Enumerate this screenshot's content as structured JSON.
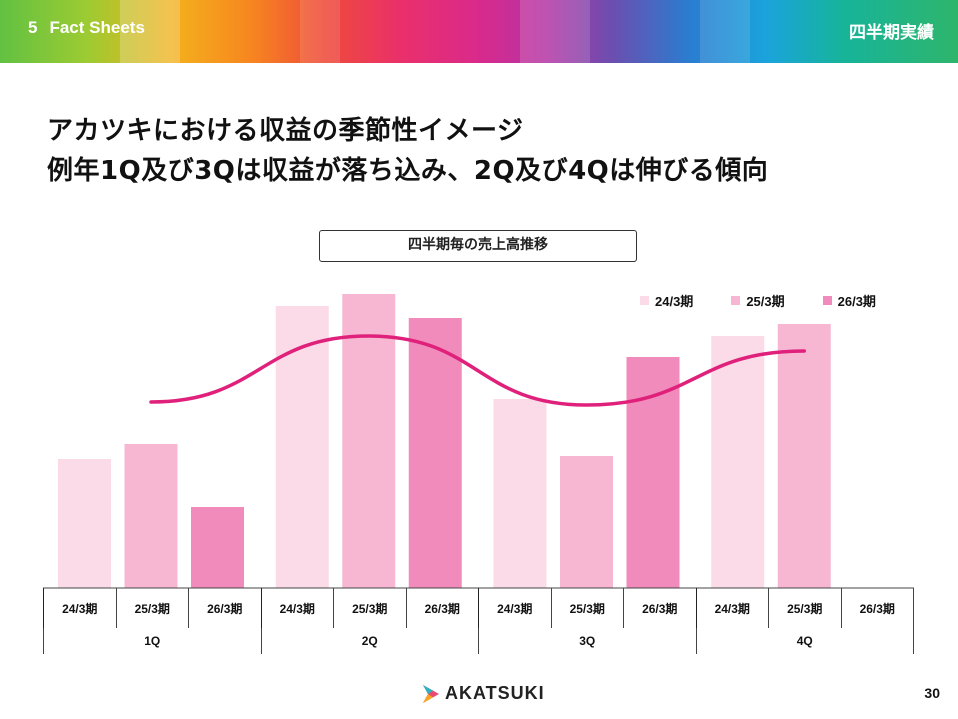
{
  "header": {
    "section_number": "5",
    "section_title": "Fact Sheets",
    "category": "四半期実績"
  },
  "headline": {
    "line1": "アカツキにおける収益の季節性イメージ",
    "line2": "例年1Q及び3Qは収益が落ち込み、2Q及び4Qは伸びる傾向"
  },
  "chart_data": {
    "type": "bar",
    "title": "四半期毎の売上高推移",
    "groups": [
      "1Q",
      "2Q",
      "3Q",
      "4Q"
    ],
    "period_labels": [
      "24/3期",
      "25/3期",
      "26/3期"
    ],
    "series": [
      {
        "name": "24/3期",
        "color": "#fadbe7",
        "values": [
          43,
          94,
          63,
          84
        ]
      },
      {
        "name": "25/3期",
        "color": "#f7b7d3",
        "values": [
          48,
          98,
          44,
          88
        ]
      },
      {
        "name": "26/3期",
        "color": "#f08bbb",
        "values": [
          27,
          90,
          77,
          null
        ]
      }
    ],
    "trend_line": {
      "description": "seasonality curve",
      "color": "#e0217b"
    },
    "ylim": [
      0,
      100
    ],
    "axis_values_shown": false,
    "legend_position": "top-right"
  },
  "footer": {
    "logo_text": "AKATSUKI",
    "page_number": "30"
  },
  "colors": {
    "accent": "#e0217b"
  }
}
